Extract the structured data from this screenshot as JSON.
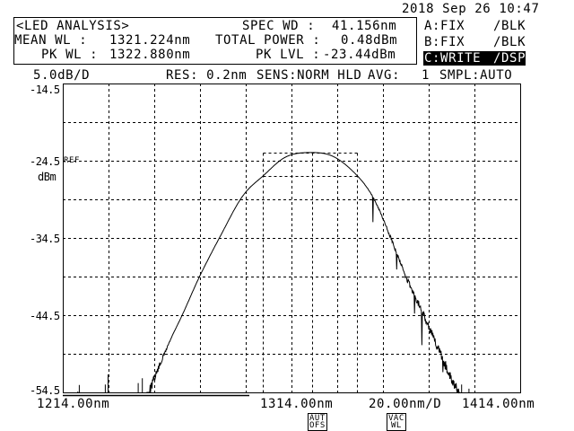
{
  "datetime": "2018 Sep 26 10:47",
  "analysis": {
    "title": "<LED ANALYSIS>",
    "mean_wl_label": "MEAN WL :",
    "mean_wl_value": "1321.224nm",
    "pk_wl_label": "PK WL :",
    "pk_wl_value": "1322.880nm",
    "spec_wd_label": "SPEC WD :",
    "spec_wd_value": "41.156nm",
    "total_power_label": "TOTAL POWER :",
    "total_power_value": "0.48dBm",
    "pk_lvl_label": "PK LVL :",
    "pk_lvl_value": "-23.44dBm"
  },
  "traces": [
    {
      "name": "A:FIX",
      "mode": "/BLK",
      "active": false
    },
    {
      "name": "B:FIX",
      "mode": "/BLK",
      "active": false
    },
    {
      "name": "C:WRITE",
      "mode": "/DSP",
      "active": true
    }
  ],
  "settings": {
    "scale": "5.0dB/D",
    "res": "RES: 0.2nm",
    "sens": "SENS:NORM HLD",
    "avg_label": "AVG:",
    "avg_value": "1",
    "smpl": "SMPL:AUTO"
  },
  "y_axis": {
    "top": "-14.5",
    "ref": "-24.5",
    "ref_marker": "REF",
    "unit": "dBm",
    "t3": "-34.5",
    "t4": "-44.5",
    "bottom": "-54.5"
  },
  "x_axis": {
    "start": "1214.00nm",
    "center": "1314.00nm",
    "span_per_div": "20.00nm/D",
    "stop": "1414.00nm"
  },
  "badges": {
    "aut_ofs": [
      "AUT",
      "OFS"
    ],
    "vac_wl": [
      "VAC",
      "WL"
    ]
  },
  "chart_data": {
    "type": "line",
    "xlabel": "",
    "ylabel": "dBm",
    "xlim": [
      1214,
      1414
    ],
    "ylim": [
      -54.5,
      -14.5
    ],
    "x_divisions": 10,
    "y_divisions": 8,
    "grid": true,
    "ref_level": -24.5,
    "series": [
      {
        "x": [
          1250.6,
          1258.7,
          1266.2,
          1273.8,
          1283.0,
          1292.6,
          1301.6,
          1311.6,
          1322.88,
          1332.6,
          1342.8,
          1350.3,
          1357.7,
          1364.5,
          1372.6,
          1380.1,
          1387.6
        ],
        "y": [
          -54.5,
          -49.1,
          -44.5,
          -39.5,
          -34.2,
          -29.1,
          -26.46,
          -24.0,
          -23.44,
          -24.0,
          -26.46,
          -29.5,
          -34.5,
          -39.5,
          -44.5,
          -49.6,
          -54.3
        ]
      }
    ],
    "spec_width_box": {
      "x": [
        1301.6,
        1342.8
      ],
      "y": [
        -26.44,
        -23.44
      ],
      "peak_x": 1322.88
    }
  }
}
